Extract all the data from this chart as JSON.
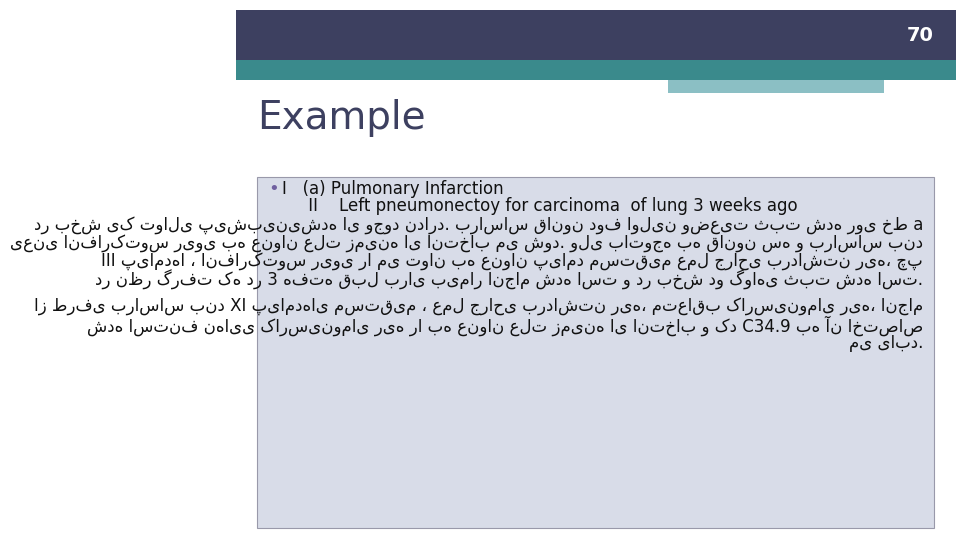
{
  "slide_number": "70",
  "title": "Example",
  "bg_color": "#ffffff",
  "header_dark": "#3d4060",
  "header_teal": "#3a8a8c",
  "header_light": "#8bbfc4",
  "box_bg": "#d8dce8",
  "box_border": "#9999aa",
  "bullet_color": "#7060a0",
  "title_color": "#3d4060",
  "title_fontsize": 28,
  "slide_num_fontsize": 14,
  "bullet_line1": "I   (a) Pulmonary Infarction",
  "bullet_line2": "     II    Left pneumonectoy for carcinoma  of lung 3 weeks ago",
  "persian_line1": "در بخش یک توالی پیش‌بینی‌شده ای وجود ندارد. براساس قانون دوف اولین وضعیت ثبت شده روی خط a",
  "persian_line2": "یعنی انفارکتوس ریوی به عنوان علت زمینه ای انتخاب می شود. ولی باتوجه به قانون سه و براساس بند",
  "persian_line3": "III پیامدها ، انفارکتوس ریوی را می توان به عنوان پیامد مستقیم عمل جراحی برداشتن ریه، چپ",
  "persian_line4": "در نظر گرفت که در 3 هفته قبل برای بیمار انجام شده است و در بخش دو گواهی ثبت شده است.",
  "persian_line5": "از طرفی براساس بند XI پیامدهای مستقیم ، عمل جراحی برداشتن ریه، متعاقب کارسینومای ریه، انجام",
  "persian_line6": "شده استنف نهایی کارسینومای ریه را به عنوان علت زمینه ای انتخاب و کد C34.9 به آن اختصاص",
  "persian_line7": "می یابد.",
  "text_fontsize": 12,
  "persian_fontsize": 12
}
